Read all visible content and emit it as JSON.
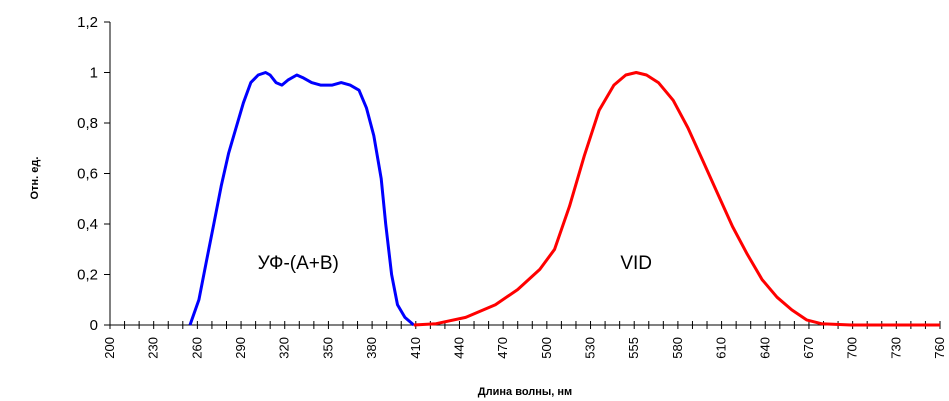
{
  "chart_data": {
    "type": "line",
    "ylabel": "Отн. ед.",
    "xlabel": "Длина волны, нм",
    "ylim": [
      0,
      1.2
    ],
    "xlim": [
      200,
      760
    ],
    "y_ticks": [
      0,
      0.2,
      0.4,
      0.6,
      0.8,
      1,
      1.2
    ],
    "y_tick_labels": [
      "0",
      "0,2",
      "0,4",
      "0,6",
      "0,8",
      "1",
      "1,2"
    ],
    "x_tick_labels": [
      "200",
      "230",
      "260",
      "290",
      "320",
      "350",
      "380",
      "410",
      "440",
      "470",
      "500",
      "530",
      "555",
      "580",
      "610",
      "640",
      "670",
      "700",
      "730",
      "760"
    ],
    "grid": false,
    "series": [
      {
        "name": "УФ-(А+В)",
        "color": "#0000ff",
        "points": [
          [
            254,
            0
          ],
          [
            260,
            0.1
          ],
          [
            265,
            0.25
          ],
          [
            270,
            0.4
          ],
          [
            275,
            0.55
          ],
          [
            280,
            0.68
          ],
          [
            285,
            0.78
          ],
          [
            290,
            0.88
          ],
          [
            295,
            0.96
          ],
          [
            300,
            0.99
          ],
          [
            305,
            1.0
          ],
          [
            308,
            0.99
          ],
          [
            312,
            0.96
          ],
          [
            316,
            0.95
          ],
          [
            320,
            0.97
          ],
          [
            326,
            0.99
          ],
          [
            330,
            0.98
          ],
          [
            336,
            0.96
          ],
          [
            342,
            0.95
          ],
          [
            350,
            0.95
          ],
          [
            356,
            0.96
          ],
          [
            362,
            0.95
          ],
          [
            368,
            0.93
          ],
          [
            373,
            0.86
          ],
          [
            378,
            0.75
          ],
          [
            383,
            0.58
          ],
          [
            386,
            0.4
          ],
          [
            390,
            0.2
          ],
          [
            394,
            0.08
          ],
          [
            399,
            0.03
          ],
          [
            405,
            0
          ]
        ]
      },
      {
        "name": "VID",
        "color": "#ff0000",
        "points": [
          [
            405,
            0
          ],
          [
            420,
            0.005
          ],
          [
            440,
            0.03
          ],
          [
            460,
            0.08
          ],
          [
            475,
            0.14
          ],
          [
            490,
            0.22
          ],
          [
            500,
            0.3
          ],
          [
            510,
            0.47
          ],
          [
            520,
            0.67
          ],
          [
            530,
            0.85
          ],
          [
            540,
            0.95
          ],
          [
            548,
            0.99
          ],
          [
            555,
            1.0
          ],
          [
            562,
            0.99
          ],
          [
            570,
            0.96
          ],
          [
            580,
            0.89
          ],
          [
            590,
            0.78
          ],
          [
            600,
            0.65
          ],
          [
            610,
            0.52
          ],
          [
            620,
            0.39
          ],
          [
            630,
            0.28
          ],
          [
            640,
            0.18
          ],
          [
            650,
            0.11
          ],
          [
            660,
            0.06
          ],
          [
            670,
            0.02
          ],
          [
            680,
            0.005
          ],
          [
            700,
            0
          ],
          [
            760,
            0
          ]
        ]
      }
    ],
    "annotations": [
      {
        "text": "УФ-(А+В)",
        "x": 327,
        "y": 0.25
      },
      {
        "text": "VID",
        "x": 555,
        "y": 0.25
      }
    ]
  }
}
